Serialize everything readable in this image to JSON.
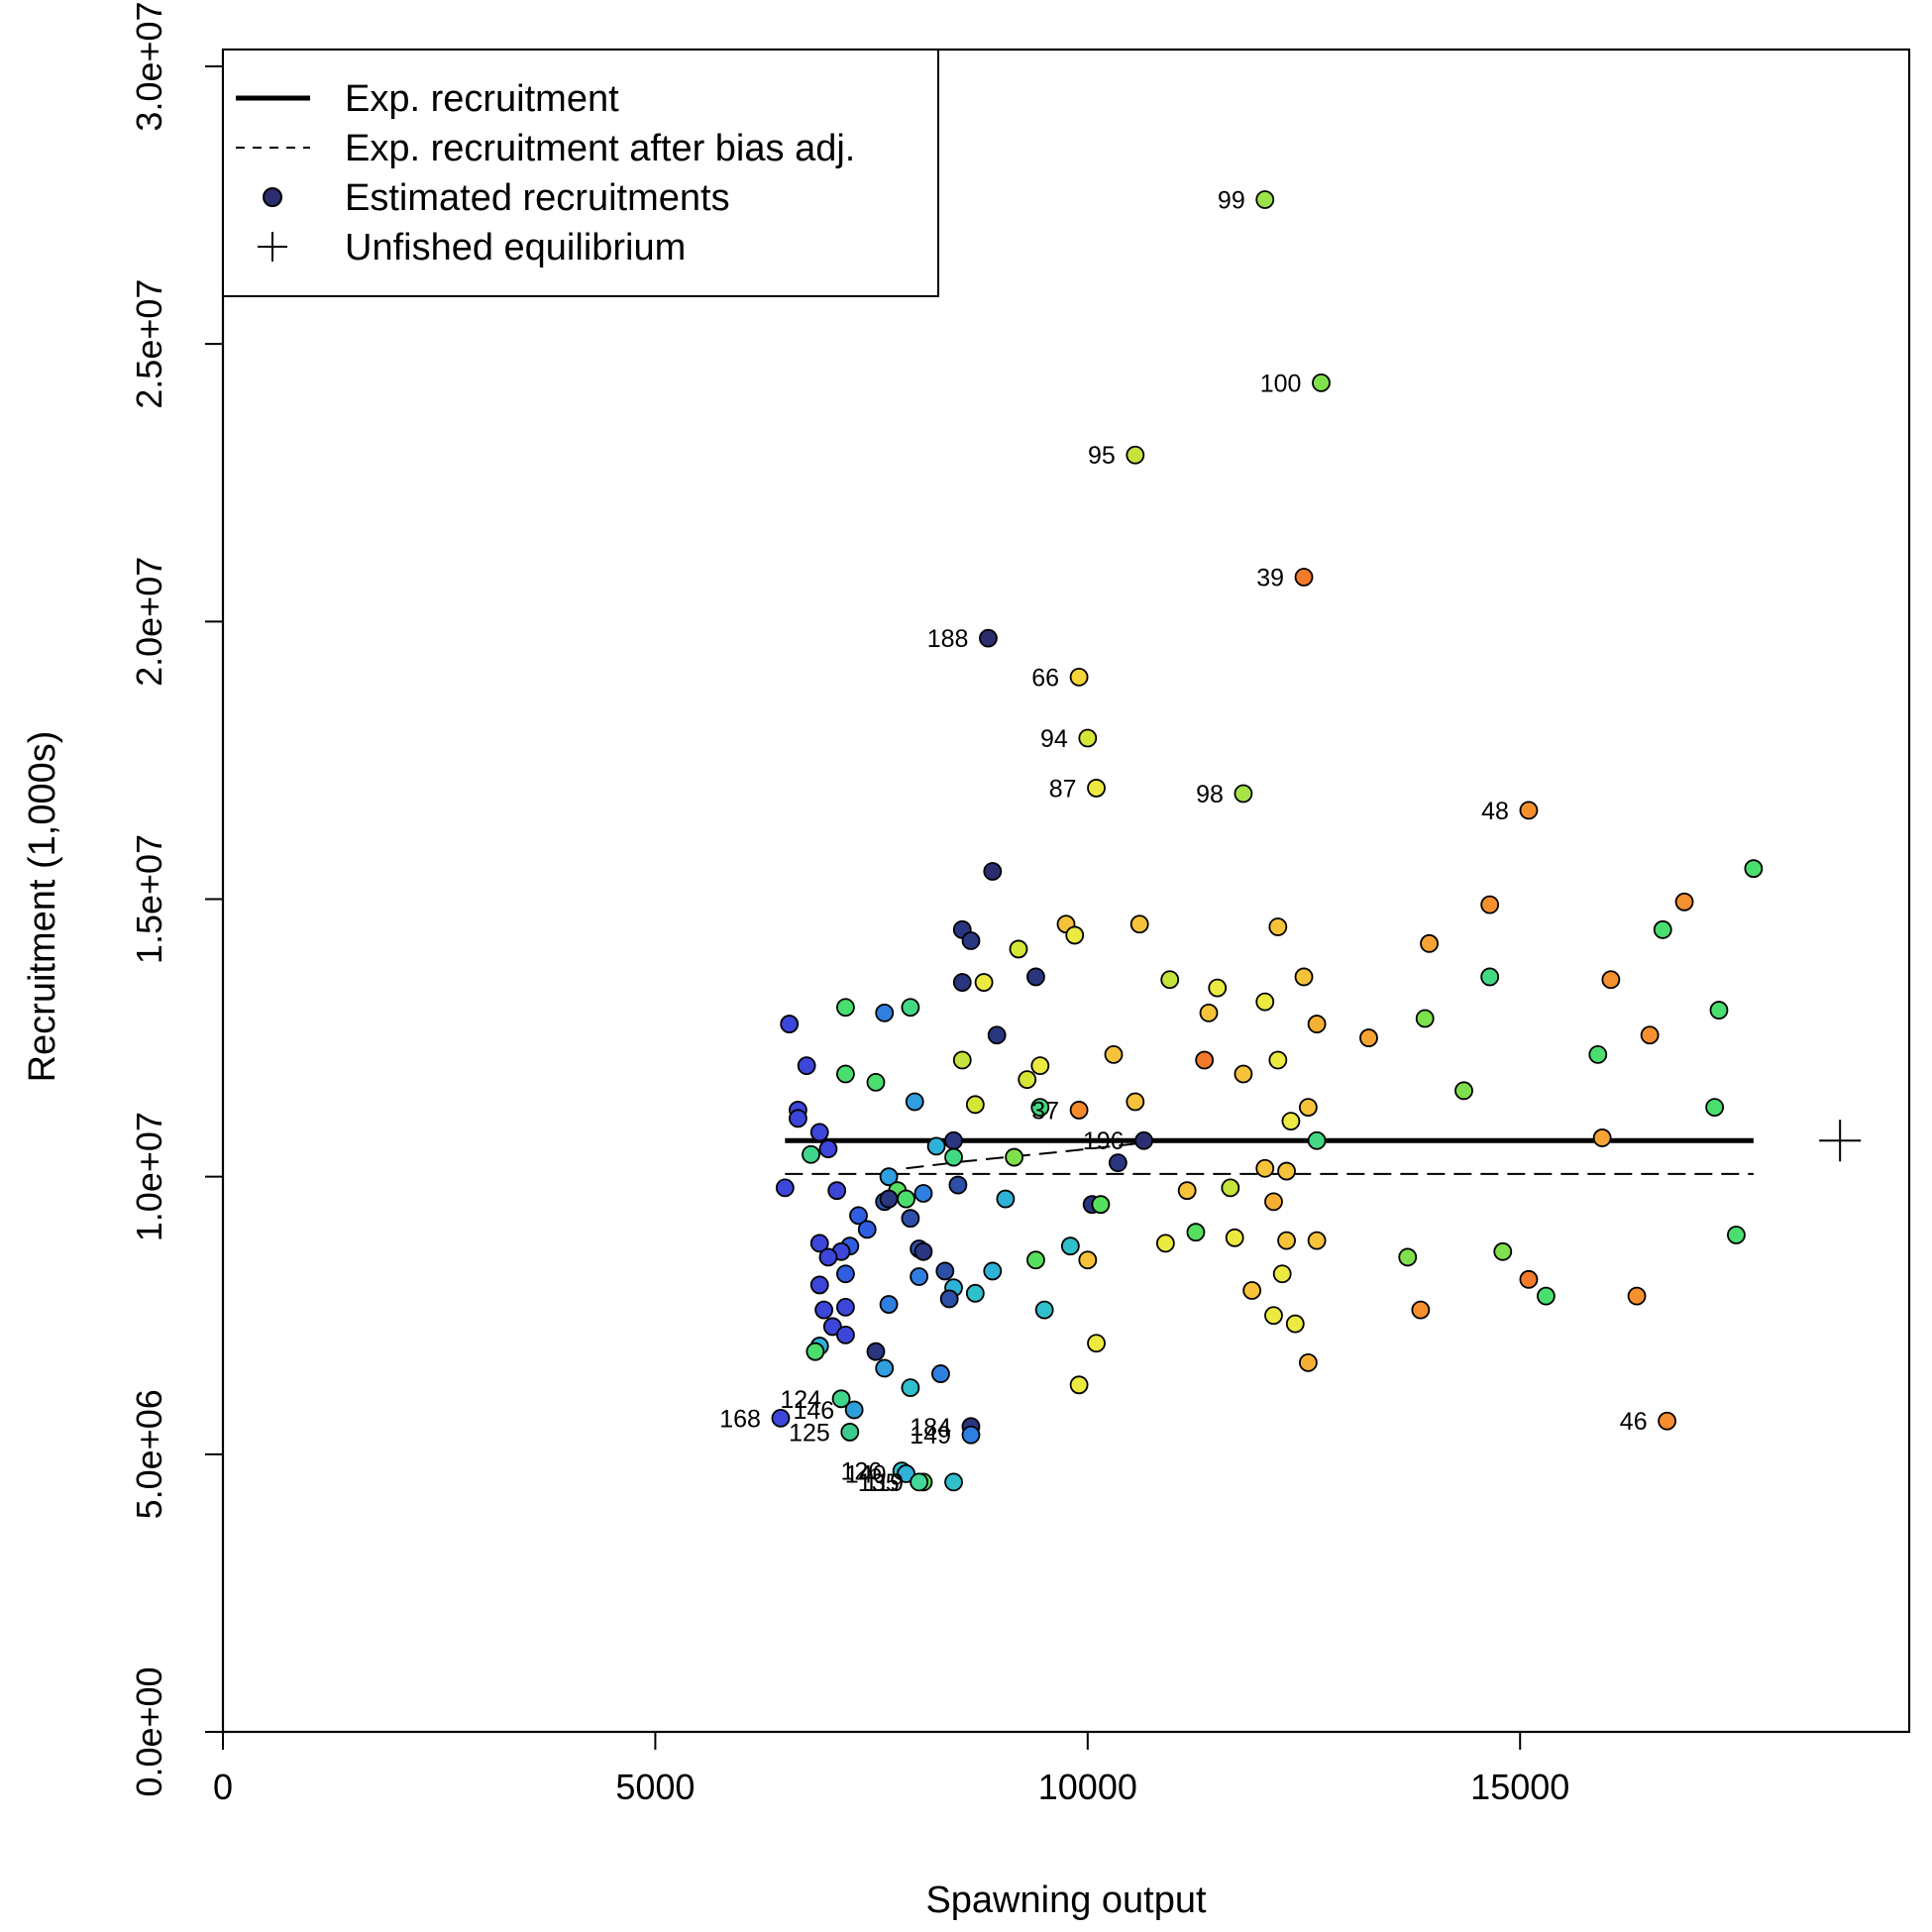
{
  "chart_data": {
    "type": "scatter",
    "xlabel": "Spawning output",
    "ylabel": "Recruitment (1,000s)",
    "xlim": [
      0,
      19500
    ],
    "ylim": [
      0,
      30000000
    ],
    "x_ticks": [
      0,
      5000,
      10000,
      15000
    ],
    "x_tick_labels": [
      "0",
      "5000",
      "10000",
      "15000"
    ],
    "y_ticks": [
      0,
      5000000,
      10000000,
      15000000,
      20000000,
      25000000,
      30000000
    ],
    "y_tick_labels": [
      "0.0e+00",
      "5.0e+06",
      "1.0e+07",
      "1.5e+07",
      "2.0e+07",
      "2.5e+07",
      "3.0e+07"
    ],
    "grid": false,
    "legend": {
      "placement": "top-left",
      "entries": [
        {
          "label": "Exp. recruitment",
          "style": "solid-line"
        },
        {
          "label": "Exp. recruitment after bias adj.",
          "style": "dashed-line"
        },
        {
          "label": "Estimated recruitments",
          "style": "point"
        },
        {
          "label": "Unfished equilibrium",
          "style": "plus"
        }
      ]
    },
    "lines": [
      {
        "name": "Exp. recruitment",
        "style": "solid",
        "x": [
          6500,
          17700
        ],
        "y": [
          10650000,
          10650000
        ]
      },
      {
        "name": "Exp. recruitment after bias adj.",
        "style": "dashed",
        "x": [
          6500,
          17700
        ],
        "y": [
          10050000,
          10050000
        ]
      },
      {
        "name": "Exp. recruitment after bias adj.",
        "style": "dashed",
        "x": [
          7900,
          8600,
          9700,
          10300,
          10700
        ],
        "y": [
          10150000,
          10280000,
          10450000,
          10550000,
          10620000
        ]
      }
    ],
    "unfished_equilibrium": {
      "x": 18700,
      "y": 10650000
    },
    "points": [
      {
        "x": 12050,
        "y": 27600000,
        "label": "99",
        "color": "#9be34a"
      },
      {
        "x": 12700,
        "y": 24300000,
        "label": "100",
        "color": "#7ee04c"
      },
      {
        "x": 10550,
        "y": 23000000,
        "label": "95",
        "color": "#c4e33c"
      },
      {
        "x": 12500,
        "y": 20800000,
        "label": "39",
        "color": "#f27a2a"
      },
      {
        "x": 8850,
        "y": 19700000,
        "label": "188",
        "color": "#2b2e6e"
      },
      {
        "x": 9900,
        "y": 19000000,
        "label": "66",
        "color": "#f5d33a"
      },
      {
        "x": 10000,
        "y": 17900000,
        "label": "94",
        "color": "#d6e636"
      },
      {
        "x": 10100,
        "y": 17000000,
        "label": "87",
        "color": "#ecea40"
      },
      {
        "x": 11800,
        "y": 16900000,
        "label": "98",
        "color": "#a6e348"
      },
      {
        "x": 15100,
        "y": 16600000,
        "label": "48",
        "color": "#f5902e"
      },
      {
        "x": 16700,
        "y": 5600000,
        "label": "46",
        "color": "#f58c2e"
      },
      {
        "x": 6450,
        "y": 5650000,
        "label": "168",
        "color": "#3c46d8"
      },
      {
        "x": 7150,
        "y": 6000000,
        "label": "124",
        "color": "#3fd68c"
      },
      {
        "x": 7300,
        "y": 5800000,
        "label": "146",
        "color": "#2e9fd8"
      },
      {
        "x": 7250,
        "y": 5400000,
        "label": "125",
        "color": "#3acc8c"
      },
      {
        "x": 8650,
        "y": 5500000,
        "label": "184",
        "color": "#2a3580"
      },
      {
        "x": 8650,
        "y": 5350000,
        "label": "149",
        "color": "#2f7fe0"
      },
      {
        "x": 7850,
        "y": 4700000,
        "label": "126",
        "color": "#2fc0cc"
      },
      {
        "x": 7900,
        "y": 4650000,
        "label": "140",
        "color": "#2fb2d8"
      },
      {
        "x": 8100,
        "y": 4500000,
        "label": "119",
        "color": "#57df5e"
      },
      {
        "x": 8050,
        "y": 4500000,
        "label": "135",
        "color": "#43d898"
      },
      {
        "x": 9900,
        "y": 11200000,
        "label": "37",
        "color": "#f58a2c"
      },
      {
        "x": 10650,
        "y": 10650000,
        "label": "196",
        "color": "#2b2f70"
      },
      {
        "x": 17700,
        "y": 15550000,
        "color": "#49de6e"
      },
      {
        "x": 16900,
        "y": 14950000,
        "color": "#f5902e"
      },
      {
        "x": 16650,
        "y": 14450000,
        "color": "#49de6e"
      },
      {
        "x": 14650,
        "y": 14900000,
        "color": "#f5902e"
      },
      {
        "x": 13950,
        "y": 14200000,
        "color": "#f5a334"
      },
      {
        "x": 14650,
        "y": 13600000,
        "color": "#43d884"
      },
      {
        "x": 16050,
        "y": 13550000,
        "color": "#f5902e"
      },
      {
        "x": 17300,
        "y": 13000000,
        "color": "#49de6e"
      },
      {
        "x": 16500,
        "y": 12550000,
        "color": "#f5902e"
      },
      {
        "x": 13900,
        "y": 12850000,
        "color": "#7ee04c"
      },
      {
        "x": 13250,
        "y": 12500000,
        "color": "#f5a334"
      },
      {
        "x": 15900,
        "y": 12200000,
        "color": "#49de6e"
      },
      {
        "x": 14350,
        "y": 11550000,
        "color": "#7ee04c"
      },
      {
        "x": 17250,
        "y": 11250000,
        "color": "#49de6e"
      },
      {
        "x": 15950,
        "y": 10700000,
        "color": "#f5a334"
      },
      {
        "x": 17500,
        "y": 8950000,
        "color": "#49de6e"
      },
      {
        "x": 14800,
        "y": 8650000,
        "color": "#7ee04c"
      },
      {
        "x": 15100,
        "y": 8150000,
        "color": "#f27a2a"
      },
      {
        "x": 15300,
        "y": 7850000,
        "color": "#49de6e"
      },
      {
        "x": 16350,
        "y": 7850000,
        "color": "#f5902e"
      },
      {
        "x": 13700,
        "y": 8550000,
        "color": "#7ee04c"
      },
      {
        "x": 13850,
        "y": 7600000,
        "color": "#f5902e"
      },
      {
        "x": 12200,
        "y": 14500000,
        "color": "#f5c23a"
      },
      {
        "x": 12500,
        "y": 13600000,
        "color": "#f5c23a"
      },
      {
        "x": 12050,
        "y": 13150000,
        "color": "#ecea40"
      },
      {
        "x": 12650,
        "y": 12750000,
        "color": "#f5b034"
      },
      {
        "x": 12200,
        "y": 12100000,
        "color": "#ecea40"
      },
      {
        "x": 12550,
        "y": 11250000,
        "color": "#f5c23a"
      },
      {
        "x": 12350,
        "y": 11000000,
        "color": "#ecea40"
      },
      {
        "x": 12650,
        "y": 10650000,
        "color": "#43d884"
      },
      {
        "x": 12050,
        "y": 10150000,
        "color": "#f5c23a"
      },
      {
        "x": 12300,
        "y": 10100000,
        "color": "#f5c23a"
      },
      {
        "x": 12150,
        "y": 9550000,
        "color": "#f5b034"
      },
      {
        "x": 12300,
        "y": 8850000,
        "color": "#f5c23a"
      },
      {
        "x": 12650,
        "y": 8850000,
        "color": "#f5c23a"
      },
      {
        "x": 12250,
        "y": 8250000,
        "color": "#ecea40"
      },
      {
        "x": 11900,
        "y": 7950000,
        "color": "#f5c23a"
      },
      {
        "x": 12150,
        "y": 7500000,
        "color": "#ecea40"
      },
      {
        "x": 12400,
        "y": 7350000,
        "color": "#ecea40"
      },
      {
        "x": 12550,
        "y": 6650000,
        "color": "#f5b034"
      },
      {
        "x": 11500,
        "y": 13400000,
        "color": "#ecea40"
      },
      {
        "x": 10950,
        "y": 13550000,
        "color": "#c4e33c"
      },
      {
        "x": 11400,
        "y": 12950000,
        "color": "#f5c23a"
      },
      {
        "x": 11350,
        "y": 12100000,
        "color": "#f27a2a"
      },
      {
        "x": 11800,
        "y": 11850000,
        "color": "#f5c23a"
      },
      {
        "x": 11650,
        "y": 9800000,
        "color": "#c4e33c"
      },
      {
        "x": 11150,
        "y": 9750000,
        "color": "#f5c23a"
      },
      {
        "x": 11250,
        "y": 9000000,
        "color": "#57df5e"
      },
      {
        "x": 11700,
        "y": 8900000,
        "color": "#ecea40"
      },
      {
        "x": 10900,
        "y": 8800000,
        "color": "#ecea40"
      },
      {
        "x": 10600,
        "y": 14550000,
        "color": "#f5c23a"
      },
      {
        "x": 9750,
        "y": 14550000,
        "color": "#f5c23a"
      },
      {
        "x": 9850,
        "y": 14350000,
        "color": "#ecea40"
      },
      {
        "x": 9200,
        "y": 14100000,
        "color": "#d6e636"
      },
      {
        "x": 10300,
        "y": 12200000,
        "color": "#f5c23a"
      },
      {
        "x": 9450,
        "y": 12000000,
        "color": "#ecea40"
      },
      {
        "x": 9300,
        "y": 11750000,
        "color": "#d6e636"
      },
      {
        "x": 10550,
        "y": 11350000,
        "color": "#f5c23a"
      },
      {
        "x": 9450,
        "y": 11250000,
        "color": "#43d884"
      },
      {
        "x": 10350,
        "y": 10250000,
        "color": "#2a3580"
      },
      {
        "x": 9150,
        "y": 10350000,
        "color": "#7ee04c"
      },
      {
        "x": 10050,
        "y": 9500000,
        "color": "#2a3580"
      },
      {
        "x": 10150,
        "y": 9500000,
        "color": "#57df5e"
      },
      {
        "x": 9050,
        "y": 9600000,
        "color": "#2fb2d8"
      },
      {
        "x": 9800,
        "y": 8750000,
        "color": "#2fc0cc"
      },
      {
        "x": 9400,
        "y": 8500000,
        "color": "#57df5e"
      },
      {
        "x": 10000,
        "y": 8500000,
        "color": "#f5c23a"
      },
      {
        "x": 9500,
        "y": 7600000,
        "color": "#2fc0cc"
      },
      {
        "x": 10100,
        "y": 7000000,
        "color": "#ecea40"
      },
      {
        "x": 9900,
        "y": 6250000,
        "color": "#ecea40"
      },
      {
        "x": 8900,
        "y": 15500000,
        "color": "#2b2e6e"
      },
      {
        "x": 8550,
        "y": 14450000,
        "color": "#2a3580"
      },
      {
        "x": 8650,
        "y": 14250000,
        "color": "#2a3580"
      },
      {
        "x": 9400,
        "y": 13600000,
        "color": "#2a3580"
      },
      {
        "x": 8550,
        "y": 13500000,
        "color": "#2a3580"
      },
      {
        "x": 8800,
        "y": 13500000,
        "color": "#ecea40"
      },
      {
        "x": 8950,
        "y": 12550000,
        "color": "#2a3580"
      },
      {
        "x": 8550,
        "y": 12100000,
        "color": "#c4e33c"
      },
      {
        "x": 8700,
        "y": 11300000,
        "color": "#d6e636"
      },
      {
        "x": 8450,
        "y": 10650000,
        "color": "#2a3580"
      },
      {
        "x": 8450,
        "y": 10350000,
        "color": "#43d884"
      },
      {
        "x": 8500,
        "y": 9850000,
        "color": "#2d4fa8"
      },
      {
        "x": 8350,
        "y": 8300000,
        "color": "#2d4fa8"
      },
      {
        "x": 8450,
        "y": 8000000,
        "color": "#2fb2d8"
      },
      {
        "x": 8700,
        "y": 7900000,
        "color": "#2fc0cc"
      },
      {
        "x": 8900,
        "y": 8300000,
        "color": "#2fb2d8"
      },
      {
        "x": 8400,
        "y": 7800000,
        "color": "#2d4fa8"
      },
      {
        "x": 8300,
        "y": 6450000,
        "color": "#2f7fe0"
      },
      {
        "x": 8450,
        "y": 4500000,
        "color": "#2fc0cc"
      },
      {
        "x": 7950,
        "y": 13050000,
        "color": "#43d884"
      },
      {
        "x": 7650,
        "y": 12950000,
        "color": "#2f7fe0"
      },
      {
        "x": 8000,
        "y": 11350000,
        "color": "#2f9fe0"
      },
      {
        "x": 8250,
        "y": 10550000,
        "color": "#2fb2d8"
      },
      {
        "x": 7700,
        "y": 10000000,
        "color": "#2f9fe0"
      },
      {
        "x": 7800,
        "y": 9750000,
        "color": "#57df5e"
      },
      {
        "x": 7900,
        "y": 9600000,
        "color": "#49de6e"
      },
      {
        "x": 7650,
        "y": 9550000,
        "color": "#2d4fa8"
      },
      {
        "x": 7700,
        "y": 9600000,
        "color": "#2a3580"
      },
      {
        "x": 8100,
        "y": 9700000,
        "color": "#2f7fe0"
      },
      {
        "x": 7950,
        "y": 9250000,
        "color": "#2d4fa8"
      },
      {
        "x": 8050,
        "y": 8700000,
        "color": "#2d4fa8"
      },
      {
        "x": 8100,
        "y": 8650000,
        "color": "#2a3580"
      },
      {
        "x": 8050,
        "y": 8200000,
        "color": "#2f7fe0"
      },
      {
        "x": 7700,
        "y": 7700000,
        "color": "#2f7fe0"
      },
      {
        "x": 7550,
        "y": 6850000,
        "color": "#2a3580"
      },
      {
        "x": 7650,
        "y": 6550000,
        "color": "#2f9fe0"
      },
      {
        "x": 7950,
        "y": 6200000,
        "color": "#2fc0cc"
      },
      {
        "x": 7200,
        "y": 13050000,
        "color": "#49de6e"
      },
      {
        "x": 7200,
        "y": 11850000,
        "color": "#49de6e"
      },
      {
        "x": 7550,
        "y": 11700000,
        "color": "#49de6e"
      },
      {
        "x": 6650,
        "y": 11200000,
        "color": "#3c46d8"
      },
      {
        "x": 6650,
        "y": 11050000,
        "color": "#3c46d8"
      },
      {
        "x": 6550,
        "y": 12750000,
        "color": "#3c46d8"
      },
      {
        "x": 6750,
        "y": 12000000,
        "color": "#3c46d8"
      },
      {
        "x": 6900,
        "y": 10800000,
        "color": "#3c46d8"
      },
      {
        "x": 7000,
        "y": 10500000,
        "color": "#3c46d8"
      },
      {
        "x": 6800,
        "y": 10400000,
        "color": "#3fd68c"
      },
      {
        "x": 6500,
        "y": 9800000,
        "color": "#3c46d8"
      },
      {
        "x": 7100,
        "y": 9750000,
        "color": "#3c46d8"
      },
      {
        "x": 7350,
        "y": 9300000,
        "color": "#2f5fe0"
      },
      {
        "x": 7450,
        "y": 9050000,
        "color": "#2f5fe0"
      },
      {
        "x": 6900,
        "y": 8800000,
        "color": "#3c46d8"
      },
      {
        "x": 7250,
        "y": 8750000,
        "color": "#2f5fe0"
      },
      {
        "x": 7150,
        "y": 8650000,
        "color": "#3c46d8"
      },
      {
        "x": 7000,
        "y": 8550000,
        "color": "#3c46d8"
      },
      {
        "x": 7200,
        "y": 8250000,
        "color": "#2f5fe0"
      },
      {
        "x": 6900,
        "y": 8050000,
        "color": "#3c46d8"
      },
      {
        "x": 7200,
        "y": 7650000,
        "color": "#3c46d8"
      },
      {
        "x": 6950,
        "y": 7600000,
        "color": "#3c46d8"
      },
      {
        "x": 7050,
        "y": 7300000,
        "color": "#3c46d8"
      },
      {
        "x": 7200,
        "y": 7150000,
        "color": "#3c46d8"
      },
      {
        "x": 6900,
        "y": 6950000,
        "color": "#2fb2d8"
      },
      {
        "x": 6850,
        "y": 6850000,
        "color": "#49de6e"
      }
    ]
  }
}
